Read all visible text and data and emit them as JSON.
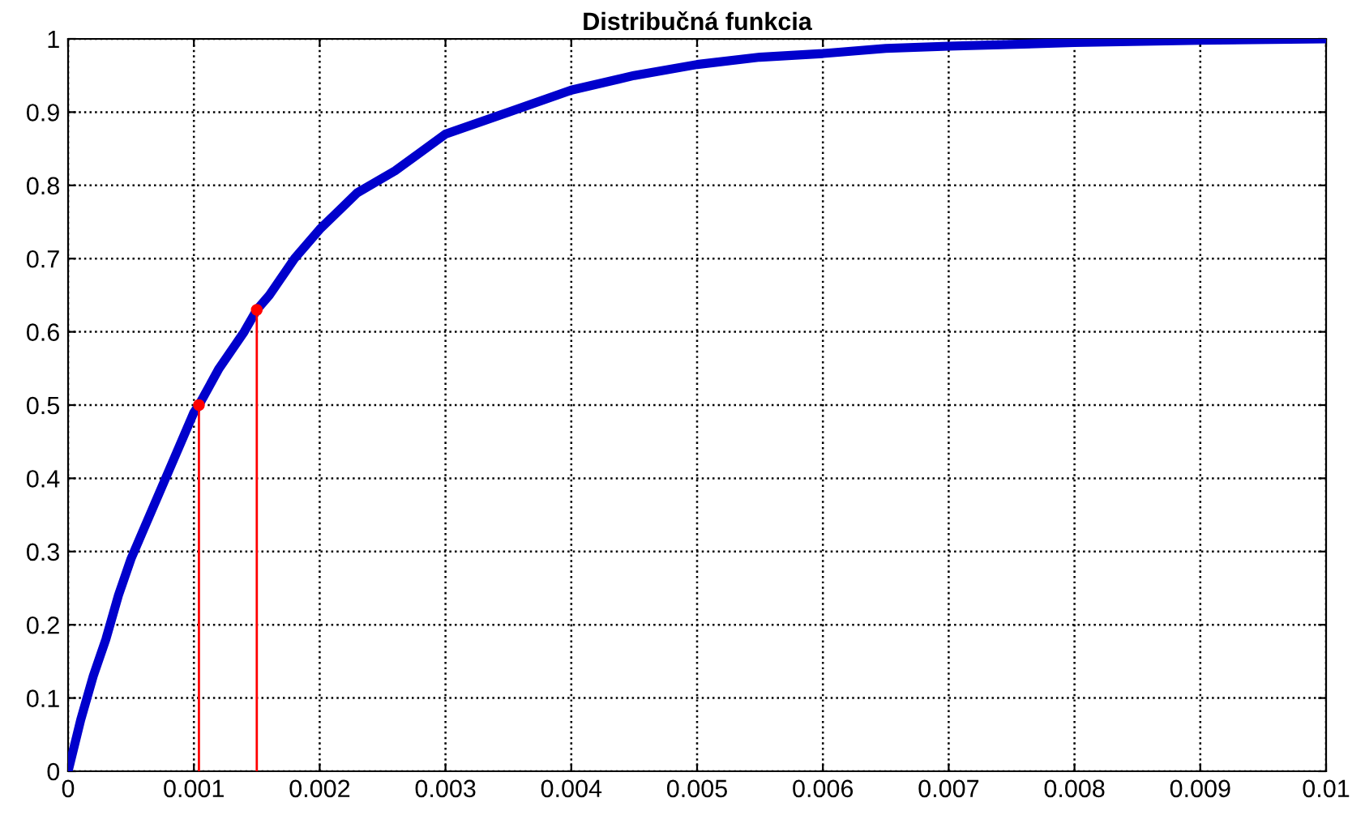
{
  "chart_data": {
    "type": "line",
    "title": "Distribučná funkcia",
    "xlim": [
      0,
      0.01
    ],
    "ylim": [
      0,
      1
    ],
    "xticks": [
      0,
      0.001,
      0.002,
      0.003,
      0.004,
      0.005,
      0.006,
      0.007,
      0.008,
      0.009,
      0.01
    ],
    "yticks": [
      0,
      0.1,
      0.2,
      0.3,
      0.4,
      0.5,
      0.6,
      0.7,
      0.8,
      0.9,
      1
    ],
    "grid": true,
    "line_style": "solid",
    "series": [
      {
        "color": "#0000cc",
        "x": [
          0,
          0.0001,
          0.0002,
          0.0003,
          0.0004,
          0.0005,
          0.0006,
          0.0008,
          0.001,
          0.00104,
          0.0012,
          0.0014,
          0.0015,
          0.0016,
          0.0018,
          0.002,
          0.0023,
          0.0026,
          0.003,
          0.0035,
          0.004,
          0.0045,
          0.005,
          0.0055,
          0.006,
          0.0065,
          0.007,
          0.008,
          0.009,
          0.01
        ],
        "values": [
          0,
          0.07,
          0.13,
          0.18,
          0.24,
          0.29,
          0.33,
          0.41,
          0.49,
          0.5,
          0.55,
          0.6,
          0.63,
          0.65,
          0.7,
          0.74,
          0.79,
          0.82,
          0.87,
          0.9,
          0.93,
          0.95,
          0.965,
          0.975,
          0.98,
          0.987,
          0.99,
          0.995,
          0.998,
          1.0
        ]
      },
      {
        "color": "#ff0000",
        "x": [
          0.00104,
          0.00104
        ],
        "values": [
          0,
          0.5
        ]
      },
      {
        "color": "#ff0000",
        "x": [
          0.0015,
          0.0015
        ],
        "values": [
          0,
          0.63
        ]
      },
      {
        "type": "scatter",
        "color": "#ff0000",
        "marker": "circle",
        "x": [
          0.00104,
          0.0015
        ],
        "values": [
          0.5,
          0.63
        ]
      }
    ]
  }
}
